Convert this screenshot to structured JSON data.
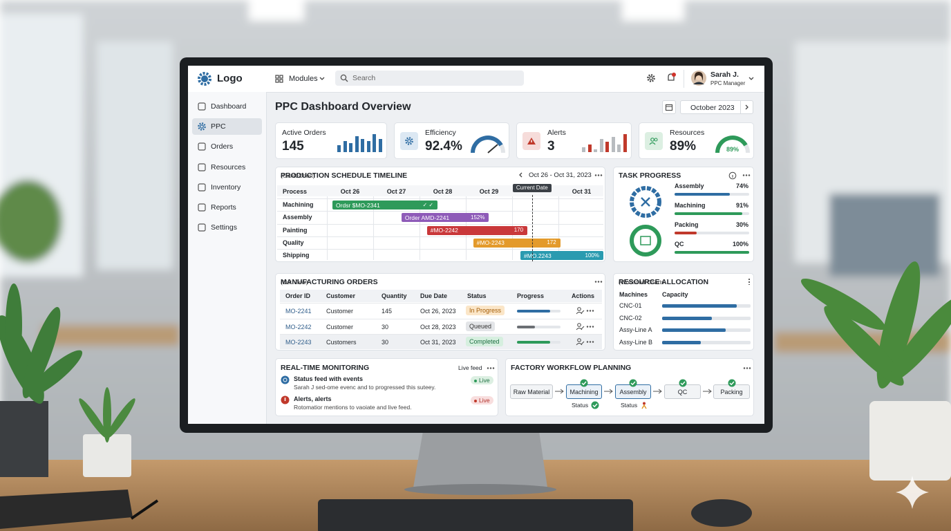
{
  "topbar": {
    "logo": "Logo",
    "modules": "Modules",
    "search_placeholder": "Search",
    "user_name": "Sarah J.",
    "user_role": "PPC Manager"
  },
  "sidebar": {
    "items": [
      "Dashboard",
      "PPC",
      "Orders",
      "Resources",
      "Inventory",
      "Reports",
      "Settings"
    ],
    "active": 1
  },
  "header": {
    "title": "PPC Dashboard Overview",
    "period": "October 2023"
  },
  "kpis": [
    {
      "label": "Active Orders",
      "value": "145",
      "bars": [
        3,
        5,
        4,
        7,
        6,
        5,
        8,
        6
      ],
      "color": "#2f6da3"
    },
    {
      "label": "Efficiency",
      "value": "92.4%",
      "color": "#2f6da3"
    },
    {
      "label": "Alerts",
      "value": "3",
      "bars": [
        2,
        3,
        1,
        5,
        4,
        6,
        3,
        7
      ],
      "color": "#c0392b"
    },
    {
      "label": "Resources",
      "value": "89%",
      "color": "#2e9a5a"
    }
  ],
  "gantt": {
    "title": "PRODUCTION SCHEDULE TIMELINE",
    "subtitle": "(Gantt Chart)",
    "range": "Oct 26 - Oct 31, 2023",
    "column_header": "Process",
    "dates": [
      "Oct 26",
      "Oct 27",
      "Oct 28",
      "Oct 29",
      null,
      "Oct 31"
    ],
    "current_date_label": "Current Date",
    "current_day": 4.43,
    "rows": [
      "Machining",
      "Assembly",
      "Painting",
      "Quality",
      "Shipping"
    ],
    "bars": [
      {
        "label": "Ordsr $MO-2341",
        "note": "✓ ✓",
        "start": 0.12,
        "end": 2.39,
        "color": "#2e9a5a"
      },
      {
        "label": "Order AMD-2241",
        "note": "152%",
        "start": 1.61,
        "end": 3.5,
        "color": "#8e5bb8"
      },
      {
        "label": "#MO-2242",
        "note": "170",
        "start": 2.16,
        "end": 4.33,
        "color": "#c9383a"
      },
      {
        "label": "#MO-2243",
        "note": "172",
        "start": 3.16,
        "end": 5.04,
        "color": "#e39a2b"
      },
      {
        "label": "#MO.2243",
        "note": "100%",
        "start": 4.18,
        "end": 5.97,
        "color": "#2a9bb0"
      }
    ]
  },
  "task_progress": {
    "title": "TASK PROGRESS",
    "items": [
      {
        "name": "Assembly",
        "value": 74,
        "value_label": "74%",
        "color": "#2f6da3"
      },
      {
        "name": "Machining",
        "value": 91,
        "value_label": "91%",
        "color": "#2e9a5a"
      },
      {
        "name": "Packing",
        "value": 30,
        "value_label": "30%",
        "color": "#c0392b"
      },
      {
        "name": "QC",
        "value": 100,
        "value_label": "100%",
        "color": "#2e9a5a"
      }
    ]
  },
  "orders": {
    "title": "MANUFACTURING ORDERS",
    "subtitle": "(List View)",
    "columns": [
      "Order ID",
      "Customer",
      "Quantity",
      "Due Date",
      "Status",
      "Progress",
      "Actions"
    ],
    "rows": [
      {
        "id": "MO-2241",
        "customer": "Customer",
        "quantity": "145",
        "due": "Oct 26, 2023",
        "status": "In Progress",
        "status_style": "warning",
        "progress": 76,
        "progress_color": "#2f6da3"
      },
      {
        "id": "MO-2242",
        "customer": "Customer",
        "quantity": "30",
        "due": "Oct 28, 2023",
        "status": "Queued",
        "status_style": "neutral",
        "progress": 41,
        "progress_color": "#6b6f74"
      },
      {
        "id": "MO-2243",
        "customer": "Customers",
        "quantity": "30",
        "due": "Oct 31, 2023",
        "status": "Completed",
        "status_style": "success",
        "progress": 76,
        "progress_color": "#2e9a5a"
      }
    ]
  },
  "resources": {
    "title": "RESOURCE ALLOCATION",
    "subtitle": "(Workload Charts",
    "headers": [
      "Machines",
      "Capacity"
    ],
    "rows": [
      {
        "name": "CNC-01",
        "value": 84
      },
      {
        "name": "CNC-02",
        "value": 56
      },
      {
        "name": "Assy-Line A",
        "value": 72
      },
      {
        "name": "Assy-Line B",
        "value": 44
      }
    ],
    "color": "#2f6da3"
  },
  "monitoring": {
    "title": "REAL-TIME MONITORING",
    "feed_label": "Live feed",
    "events": [
      {
        "title": "Status feed with events",
        "text": "Sarah J sed-ome evenc and to progressed this suteey.",
        "badge": "Live",
        "kind": "info"
      },
      {
        "title": "Alerts, alerts",
        "text": "Rotomatior mentions to vaoiate and live feed.",
        "badge": "Live",
        "kind": "alert"
      }
    ]
  },
  "workflow": {
    "title": "FACTORY WORKFLOW PLANNING",
    "steps": [
      {
        "label": "Raw Material",
        "done": false,
        "active": false
      },
      {
        "label": "Machining",
        "done": true,
        "active": true,
        "status": "Status",
        "status_ok": true
      },
      {
        "label": "Assembly",
        "done": true,
        "active": true,
        "status": "Status",
        "status_ok": false
      },
      {
        "label": "QC",
        "done": true,
        "active": false
      },
      {
        "label": "Packing",
        "done": true,
        "active": false
      }
    ]
  }
}
